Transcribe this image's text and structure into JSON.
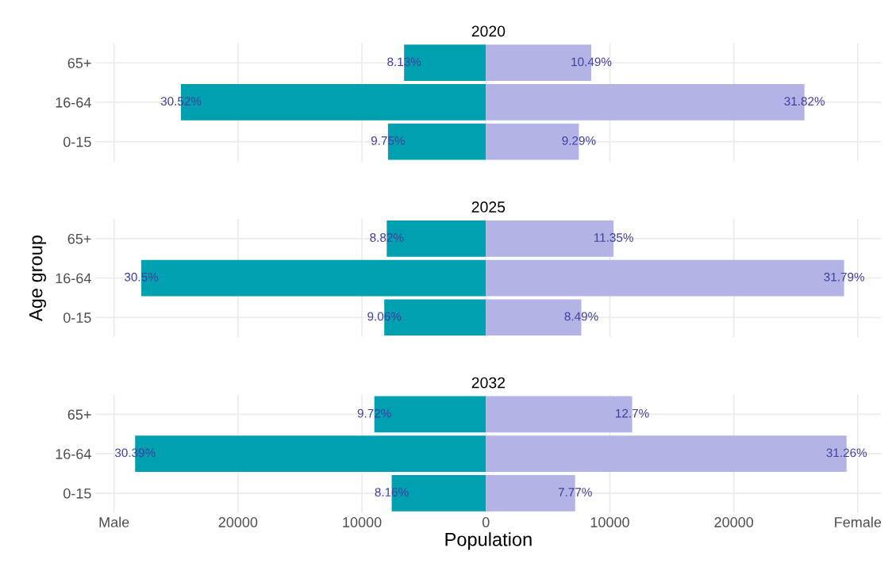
{
  "chart_data": [
    {
      "type": "bar",
      "orientation": "horizontal",
      "stacked": true,
      "title": "2020",
      "categories": [
        "65+",
        "16-64",
        "0-15"
      ],
      "xlim": [
        -31500,
        31900
      ],
      "xticks": [
        -30000,
        -20000,
        -10000,
        0,
        10000,
        20000,
        30000
      ],
      "grid": true,
      "tick_labels": "y",
      "series": [
        {
          "color": "#00a0b0",
          "values": [
            -6600,
            -24600,
            -7900
          ]
        },
        {
          "color": "#b3b3e6",
          "values": [
            8500,
            25700,
            7500
          ]
        }
      ],
      "annotations": [
        {
          "text": "8.13%",
          "x": -6600,
          "y": "65+"
        },
        {
          "text": "30.52%",
          "x": -24600,
          "y": "16-64"
        },
        {
          "text": "9.75%",
          "x": -7900,
          "y": "0-15"
        },
        {
          "text": "10.49%",
          "x": 8500,
          "y": "65+"
        },
        {
          "text": "31.82%",
          "x": 25700,
          "y": "16-64"
        },
        {
          "text": "9.29%",
          "x": 7500,
          "y": "0-15"
        }
      ]
    },
    {
      "type": "bar",
      "orientation": "horizontal",
      "stacked": true,
      "title": "2025",
      "ylabel": "Age group",
      "categories": [
        "65+",
        "16-64",
        "0-15"
      ],
      "xlim": [
        -31500,
        31900
      ],
      "xticks": [
        -30000,
        -20000,
        -10000,
        0,
        10000,
        20000,
        30000
      ],
      "grid": true,
      "tick_labels": "y",
      "series": [
        {
          "color": "#00a0b0",
          "values": [
            -8000,
            -27800,
            -8200
          ]
        },
        {
          "color": "#b3b3e6",
          "values": [
            10300,
            28900,
            7700
          ]
        }
      ],
      "annotations": [
        {
          "text": "8.82%",
          "x": -8000,
          "y": "65+"
        },
        {
          "text": "30.5%",
          "x": -27800,
          "y": "16-64"
        },
        {
          "text": "9.06%",
          "x": -8200,
          "y": "0-15"
        },
        {
          "text": "11.35%",
          "x": 10300,
          "y": "65+"
        },
        {
          "text": "31.79%",
          "x": 28900,
          "y": "16-64"
        },
        {
          "text": "8.49%",
          "x": 7700,
          "y": "0-15"
        }
      ]
    },
    {
      "type": "bar",
      "orientation": "horizontal",
      "stacked": true,
      "title": "2032",
      "xlabel": "Population",
      "categories": [
        "65+",
        "16-64",
        "0-15"
      ],
      "xlim": [
        -31500,
        31900
      ],
      "xticks": [
        {
          "value": -30000,
          "label": "Male"
        },
        {
          "value": -20000,
          "label": "20000"
        },
        {
          "value": -10000,
          "label": "10000"
        },
        0,
        10000,
        20000,
        {
          "value": 30000,
          "label": "Female"
        }
      ],
      "grid": true,
      "series": [
        {
          "color": "#00a0b0",
          "values": [
            -9000,
            -28300,
            -7600
          ]
        },
        {
          "color": "#b3b3e6",
          "values": [
            11800,
            29100,
            7200
          ]
        }
      ],
      "annotations": [
        {
          "text": "9.72%",
          "x": -9000,
          "y": "65+"
        },
        {
          "text": "30.39%",
          "x": -28300,
          "y": "16-64"
        },
        {
          "text": "8.16%",
          "x": -7600,
          "y": "0-15"
        },
        {
          "text": "12.7%",
          "x": 11800,
          "y": "65+"
        },
        {
          "text": "31.26%",
          "x": 29100,
          "y": "16-64"
        },
        {
          "text": "7.77%",
          "x": 7200,
          "y": "0-15"
        }
      ]
    }
  ]
}
